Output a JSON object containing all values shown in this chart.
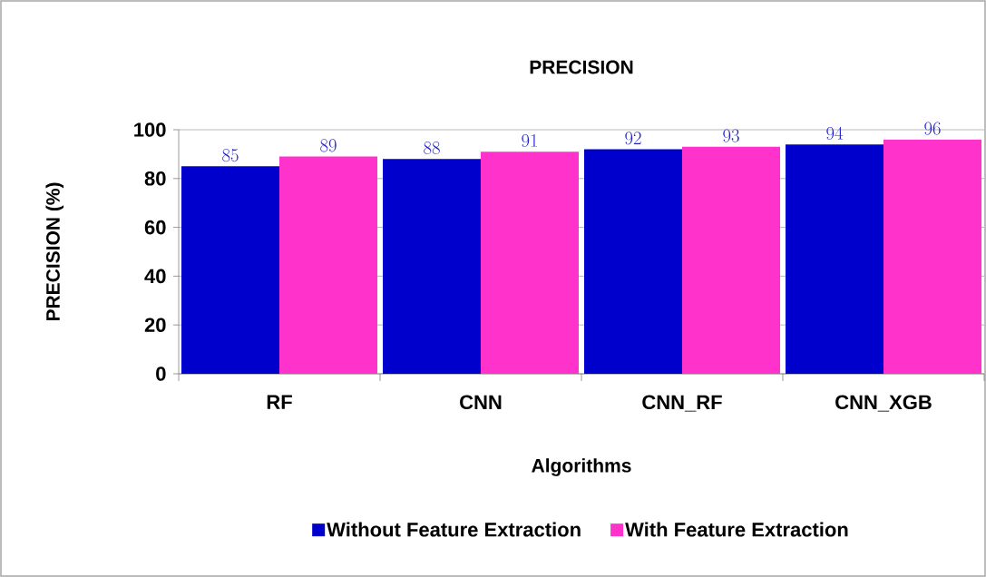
{
  "chart_data": {
    "type": "bar",
    "title": "PRECISION",
    "xlabel": "Algorithms",
    "ylabel": "PRECISION (%)",
    "categories": [
      "RF",
      "CNN",
      "CNN_RF",
      "CNN_XGB"
    ],
    "series": [
      {
        "name": "Without Feature Extraction",
        "color": "#0000cc",
        "values": [
          85,
          88,
          92,
          94
        ]
      },
      {
        "name": "With Feature Extraction",
        "color": "#ff33cc",
        "values": [
          89,
          91,
          93,
          96
        ]
      }
    ],
    "ylim": [
      0,
      100
    ],
    "yticks": [
      0,
      20,
      40,
      60,
      80,
      100
    ],
    "grid": "y",
    "legend": "bottom",
    "data_labels": true
  }
}
